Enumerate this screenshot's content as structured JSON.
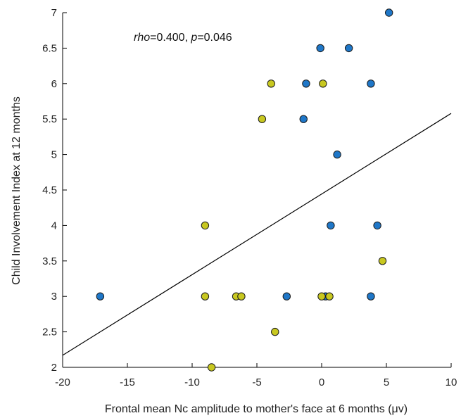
{
  "chart_data": {
    "type": "scatter",
    "title": "",
    "xlabel": "Frontal mean Nc amplitude to mother's face at 6 months (μv)",
    "ylabel": "Child Involvement Index at 12 months",
    "xlim": [
      -20,
      10
    ],
    "ylim": [
      2,
      7
    ],
    "xticks": [
      "-20",
      "-15",
      "-10",
      "-5",
      "0",
      "5",
      "10"
    ],
    "yticks": [
      "2",
      "2.5",
      "3",
      "3.5",
      "4",
      "4.5",
      "5",
      "5.5",
      "6",
      "6.5",
      "7"
    ],
    "grid": false,
    "legend": "none",
    "annotation": {
      "rho_label": "rho",
      "rho_value": "=0.400, ",
      "p_label": "p",
      "p_value": "=0.046"
    },
    "colors": {
      "blue": "#1f77c8",
      "yellow": "#c8c820",
      "edge": "#1a1a1a",
      "line": "#000000"
    },
    "series": [
      {
        "color": "#1f77c8",
        "points": [
          {
            "x": -17.1,
            "y": 3.0
          },
          {
            "x": -2.7,
            "y": 3.0
          },
          {
            "x": 0.3,
            "y": 3.0
          },
          {
            "x": 3.8,
            "y": 3.0
          },
          {
            "x": 0.7,
            "y": 4.0
          },
          {
            "x": 4.3,
            "y": 4.0
          },
          {
            "x": 1.2,
            "y": 5.0
          },
          {
            "x": -1.4,
            "y": 5.5
          },
          {
            "x": -1.2,
            "y": 6.0
          },
          {
            "x": 3.8,
            "y": 6.0
          },
          {
            "x": -0.1,
            "y": 6.5
          },
          {
            "x": 2.1,
            "y": 6.5
          },
          {
            "x": 5.2,
            "y": 7.0
          }
        ]
      },
      {
        "color": "#c8c820",
        "points": [
          {
            "x": -9.0,
            "y": 3.0
          },
          {
            "x": -6.6,
            "y": 3.0
          },
          {
            "x": -6.2,
            "y": 3.0
          },
          {
            "x": 0.0,
            "y": 3.0
          },
          {
            "x": 0.6,
            "y": 3.0
          },
          {
            "x": -9.0,
            "y": 4.0
          },
          {
            "x": -8.5,
            "y": 2.0
          },
          {
            "x": -3.6,
            "y": 2.5
          },
          {
            "x": 4.7,
            "y": 3.5
          },
          {
            "x": -4.6,
            "y": 5.5
          },
          {
            "x": -3.9,
            "y": 6.0
          },
          {
            "x": 0.1,
            "y": 6.0
          }
        ]
      }
    ],
    "fit_line": {
      "x": [
        -20,
        10
      ],
      "y": [
        2.17,
        5.58
      ]
    }
  }
}
